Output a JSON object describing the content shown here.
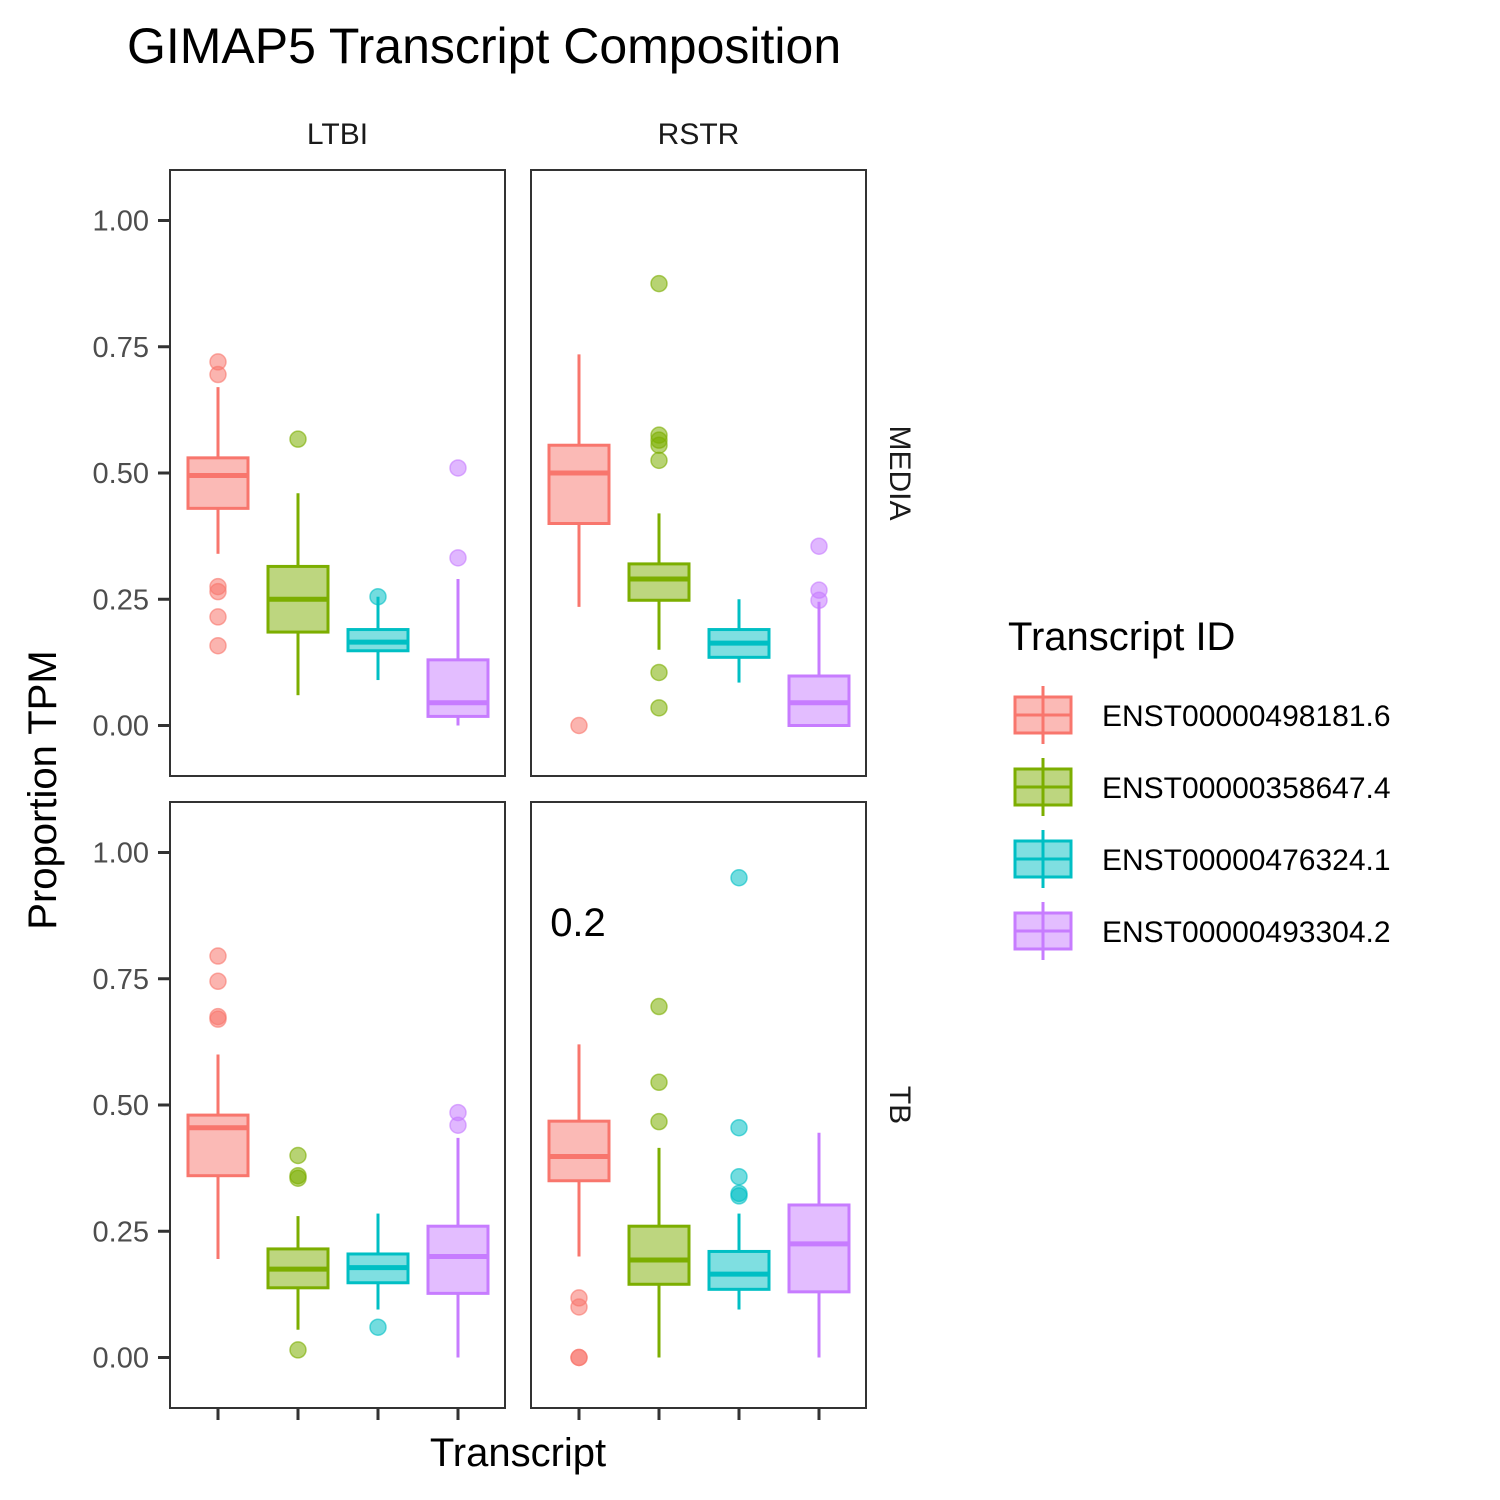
{
  "chart_data": {
    "type": "box",
    "title": "GIMAP5 Transcript Composition",
    "xlabel": "Transcript",
    "ylabel": "Proportion TPM",
    "ylim": [
      -0.1,
      1.1
    ],
    "y_ticks": [
      "0.00",
      "0.25",
      "0.50",
      "0.75",
      "1.00"
    ],
    "y_tick_values": [
      0,
      0.25,
      0.5,
      0.75,
      1.0
    ],
    "columns": [
      "LTBI",
      "RSTR"
    ],
    "rows": [
      "MEDIA",
      "TB"
    ],
    "legend": {
      "title": "Transcript ID",
      "position": "right",
      "items": [
        {
          "label": "ENST00000498181.6",
          "color": "#F8766D"
        },
        {
          "label": "ENST00000358647.4",
          "color": "#7CAE00"
        },
        {
          "label": "ENST00000476324.1",
          "color": "#00BFC4"
        },
        {
          "label": "ENST00000493304.2",
          "color": "#C77CFF"
        }
      ]
    },
    "annotation": {
      "text": "0.2",
      "panel": "RSTR-TB"
    },
    "panels": [
      {
        "col": "LTBI",
        "row": "MEDIA",
        "boxes": [
          {
            "lower_whisker": 0.34,
            "q1": 0.43,
            "median": 0.495,
            "q3": 0.53,
            "upper_whisker": 0.67,
            "outliers": [
              0.72,
              0.695,
              0.275,
              0.265,
              0.215,
              0.158
            ]
          },
          {
            "lower_whisker": 0.06,
            "q1": 0.185,
            "median": 0.25,
            "q3": 0.315,
            "upper_whisker": 0.46,
            "outliers": [
              0.567
            ]
          },
          {
            "lower_whisker": 0.09,
            "q1": 0.148,
            "median": 0.165,
            "q3": 0.19,
            "upper_whisker": 0.255,
            "outliers": [
              0.255
            ]
          },
          {
            "lower_whisker": 0.0,
            "q1": 0.018,
            "median": 0.045,
            "q3": 0.13,
            "upper_whisker": 0.29,
            "outliers": [
              0.51,
              0.332
            ]
          }
        ]
      },
      {
        "col": "RSTR",
        "row": "MEDIA",
        "boxes": [
          {
            "lower_whisker": 0.235,
            "q1": 0.4,
            "median": 0.5,
            "q3": 0.555,
            "upper_whisker": 0.735,
            "outliers": [
              0.0
            ]
          },
          {
            "lower_whisker": 0.15,
            "q1": 0.248,
            "median": 0.29,
            "q3": 0.32,
            "upper_whisker": 0.42,
            "outliers": [
              0.875,
              0.575,
              0.565,
              0.555,
              0.525,
              0.105,
              0.035
            ]
          },
          {
            "lower_whisker": 0.085,
            "q1": 0.135,
            "median": 0.163,
            "q3": 0.19,
            "upper_whisker": 0.25,
            "outliers": []
          },
          {
            "lower_whisker": 0.0,
            "q1": 0.0,
            "median": 0.045,
            "q3": 0.098,
            "upper_whisker": 0.245,
            "outliers": [
              0.355,
              0.268,
              0.248
            ]
          }
        ]
      },
      {
        "col": "LTBI",
        "row": "TB",
        "boxes": [
          {
            "lower_whisker": 0.195,
            "q1": 0.36,
            "median": 0.455,
            "q3": 0.48,
            "upper_whisker": 0.6,
            "outliers": [
              0.795,
              0.745,
              0.675,
              0.67
            ]
          },
          {
            "lower_whisker": 0.055,
            "q1": 0.138,
            "median": 0.175,
            "q3": 0.215,
            "upper_whisker": 0.28,
            "outliers": [
              0.4,
              0.36,
              0.355,
              0.015
            ]
          },
          {
            "lower_whisker": 0.095,
            "q1": 0.148,
            "median": 0.178,
            "q3": 0.205,
            "upper_whisker": 0.285,
            "outliers": [
              0.06
            ]
          },
          {
            "lower_whisker": 0.0,
            "q1": 0.127,
            "median": 0.2,
            "q3": 0.26,
            "upper_whisker": 0.435,
            "outliers": [
              0.485,
              0.46
            ]
          }
        ]
      },
      {
        "col": "RSTR",
        "row": "TB",
        "boxes": [
          {
            "lower_whisker": 0.2,
            "q1": 0.35,
            "median": 0.398,
            "q3": 0.468,
            "upper_whisker": 0.62,
            "outliers": [
              0.118,
              0.1,
              0.0,
              0.0
            ]
          },
          {
            "lower_whisker": 0.0,
            "q1": 0.145,
            "median": 0.193,
            "q3": 0.26,
            "upper_whisker": 0.415,
            "outliers": [
              0.695,
              0.545,
              0.467
            ]
          },
          {
            "lower_whisker": 0.095,
            "q1": 0.135,
            "median": 0.165,
            "q3": 0.21,
            "upper_whisker": 0.285,
            "outliers": [
              0.95,
              0.455,
              0.358,
              0.325,
              0.32
            ]
          },
          {
            "lower_whisker": 0.0,
            "q1": 0.13,
            "median": 0.225,
            "q3": 0.302,
            "upper_whisker": 0.445,
            "outliers": []
          }
        ]
      }
    ]
  }
}
